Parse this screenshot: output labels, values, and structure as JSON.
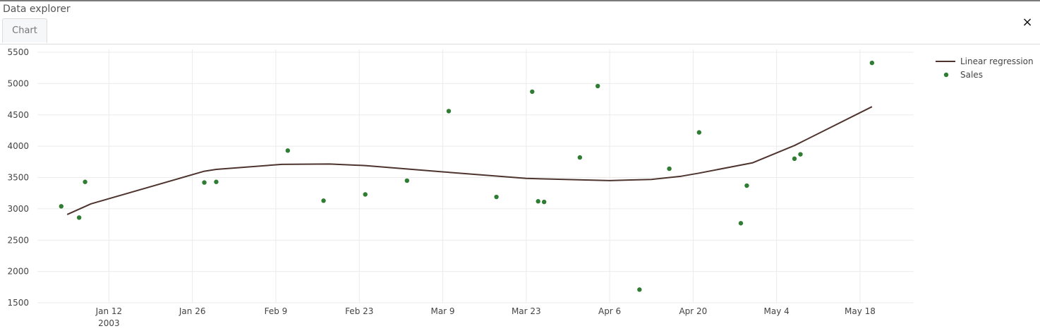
{
  "panel": {
    "title": "Data explorer",
    "close_icon": "×"
  },
  "tabs": [
    {
      "label": "Chart"
    }
  ],
  "chart_data": {
    "type": "scatter",
    "xlabel": "",
    "ylabel": "",
    "x_ticks": [
      "Jan 12",
      "Jan 26",
      "Feb 9",
      "Feb 23",
      "Mar 9",
      "Mar 23",
      "Apr 6",
      "Apr 20",
      "May 4",
      "May 18"
    ],
    "x_tick_dates": [
      "2003-01-12",
      "2003-01-26",
      "2003-02-09",
      "2003-02-23",
      "2003-03-09",
      "2003-03-23",
      "2003-04-06",
      "2003-04-20",
      "2003-05-04",
      "2003-05-18"
    ],
    "x_tick_sublabel": "2003",
    "xlim": [
      "2002-12-31",
      "2003-05-27"
    ],
    "y_ticks": [
      1500,
      2000,
      2500,
      3000,
      3500,
      4000,
      4500,
      5000,
      5500
    ],
    "ylim": [
      1500,
      5500
    ],
    "grid": true,
    "legend_position": "top-right",
    "colors": {
      "line": "#4e342e",
      "points": "#2e7d32",
      "grid": "#ebebeb"
    },
    "series": [
      {
        "name": "Linear regression",
        "kind": "line",
        "x": [
          "2003-01-05",
          "2003-01-09",
          "2003-01-28",
          "2003-01-30",
          "2003-02-10",
          "2003-02-18",
          "2003-02-24",
          "2003-03-09",
          "2003-03-23",
          "2003-04-06",
          "2003-04-13",
          "2003-04-18",
          "2003-04-21",
          "2003-04-30",
          "2003-05-07",
          "2003-05-20"
        ],
        "y": [
          2910,
          3080,
          3600,
          3630,
          3710,
          3715,
          3690,
          3590,
          3485,
          3450,
          3470,
          3520,
          3570,
          3735,
          4010,
          4630
        ]
      },
      {
        "name": "Sales",
        "kind": "scatter",
        "x": [
          "2003-01-04",
          "2003-01-07",
          "2003-01-08",
          "2003-01-28",
          "2003-01-30",
          "2003-02-11",
          "2003-02-17",
          "2003-02-24",
          "2003-03-03",
          "2003-03-10",
          "2003-03-18",
          "2003-03-24",
          "2003-03-25",
          "2003-03-26",
          "2003-04-01",
          "2003-04-04",
          "2003-04-11",
          "2003-04-16",
          "2003-04-21",
          "2003-04-28",
          "2003-04-29",
          "2003-05-07",
          "2003-05-08",
          "2003-05-20"
        ],
        "y": [
          3040,
          2860,
          3430,
          3420,
          3430,
          3930,
          3130,
          3230,
          3450,
          4560,
          3190,
          4870,
          3120,
          3110,
          3820,
          4960,
          1710,
          3640,
          4220,
          2770,
          3370,
          3800,
          3870,
          5330
        ]
      }
    ]
  }
}
